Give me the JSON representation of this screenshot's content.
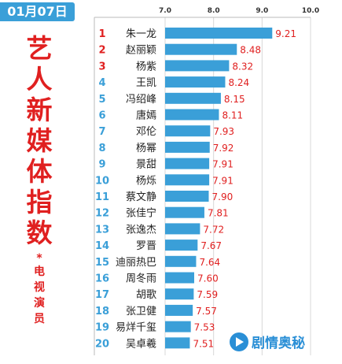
{
  "header": {
    "date": "01月07日"
  },
  "title": {
    "chars": [
      "艺",
      "人",
      "新",
      "媒",
      "体",
      "指",
      "数"
    ],
    "star": "*",
    "sub_chars": [
      "电",
      "视",
      "演",
      "员"
    ]
  },
  "watermark": {
    "text": "剧情奥秘",
    "icon": "play-icon"
  },
  "colors": {
    "bar": "#3a9fd8",
    "rank_top": "#e02020",
    "rank_rest": "#3a9fd8",
    "value": "#e02020",
    "badge": "#3a9fd8"
  },
  "chart_data": {
    "type": "bar",
    "orientation": "horizontal",
    "xlim": [
      7.0,
      10.0
    ],
    "xticks": [
      "7.0",
      "8.0",
      "9.0",
      "10.0"
    ],
    "xtick_values": [
      7.0,
      8.0,
      9.0,
      10.0
    ],
    "grid": true,
    "ranks": [
      "1",
      "2",
      "3",
      "4",
      "5",
      "6",
      "7",
      "8",
      "9",
      "10",
      "11",
      "12",
      "13",
      "14",
      "15",
      "16",
      "17",
      "18",
      "19",
      "20"
    ],
    "categories": [
      "朱一龙",
      "赵丽颖",
      "杨紫",
      "王凯",
      "冯绍峰",
      "唐嫣",
      "邓伦",
      "杨幂",
      "景甜",
      "杨烁",
      "蔡文静",
      "张佳宁",
      "张逸杰",
      "罗晋",
      "迪丽热巴",
      "周冬雨",
      "胡歌",
      "张卫健",
      "易烊千玺",
      "吴卓羲"
    ],
    "values": [
      9.21,
      8.48,
      8.32,
      8.24,
      8.15,
      8.11,
      7.93,
      7.92,
      7.91,
      7.91,
      7.9,
      7.81,
      7.72,
      7.67,
      7.64,
      7.6,
      7.59,
      7.57,
      7.53,
      7.51
    ],
    "value_labels": [
      "9.21",
      "8.48",
      "8.32",
      "8.24",
      "8.15",
      "8.11",
      "7.93",
      "7.92",
      "7.91",
      "7.91",
      "7.90",
      "7.81",
      "7.72",
      "7.67",
      "7.64",
      "7.60",
      "7.59",
      "7.57",
      "7.53",
      "7.51"
    ]
  }
}
